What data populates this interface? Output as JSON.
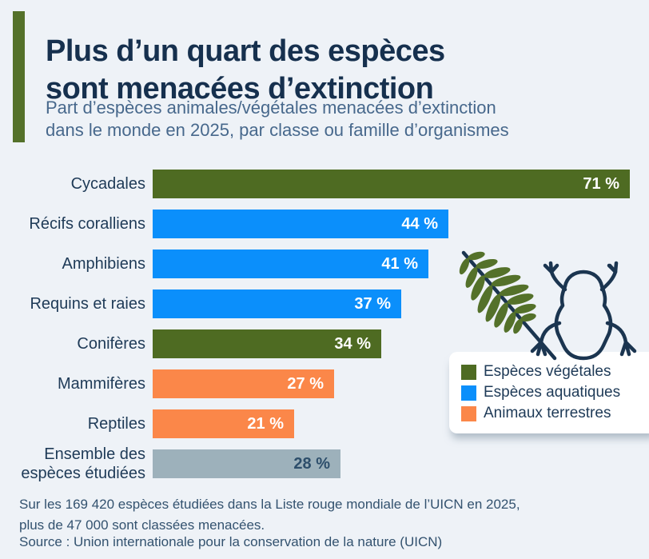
{
  "title": {
    "line1": "Plus d’un quart des espèces",
    "line2": "sont menacées d’extinction"
  },
  "subtitle": {
    "line1": "Part d’espèces animales/végétales menacées d’extinction",
    "line2": "dans le monde en 2025, par classe ou famille d’organismes"
  },
  "chart_data": {
    "type": "bar",
    "orientation": "horizontal",
    "unit": "%",
    "categories": [
      "Cycadales",
      "Récifs coralliens",
      "Amphibiens",
      "Requins et raies",
      "Conifères",
      "Mammifères",
      "Reptiles",
      "Ensemble des espèces étudiées"
    ],
    "values": [
      71,
      44,
      41,
      37,
      34,
      27,
      21,
      28
    ],
    "value_labels": [
      "71 %",
      "44 %",
      "41 %",
      "37 %",
      "34 %",
      "27 %",
      "21 %",
      "28 %"
    ],
    "groups": [
      "vegetales",
      "aquatiques",
      "aquatiques",
      "aquatiques",
      "vegetales",
      "terrestres",
      "terrestres",
      "ensemble"
    ],
    "colors": {
      "vegetales": "#4e6b22",
      "aquatiques": "#0b8ffb",
      "terrestres": "#fb8749",
      "ensemble": "#9db1bb",
      "ensemble_value_text": "#2d4e6b"
    },
    "xlim": [
      0,
      71
    ],
    "grid": false,
    "legend_position": "right-bottom"
  },
  "legend": {
    "items": [
      {
        "label": "Espèces végétales",
        "color": "#4e6b22"
      },
      {
        "label": "Espèces aquatiques",
        "color": "#0b8ffb"
      },
      {
        "label": "Animaux terrestres",
        "color": "#fb8749"
      }
    ]
  },
  "footer": {
    "note_line1": "Sur les 169 420 espèces étudiées dans la Liste rouge mondiale de l’UICN en 2025,",
    "note_line2": "plus de 47 000 sont classées menacées.",
    "source": "Source : Union internationale pour la conservation de la nature (UICN)"
  },
  "accent_color": "#54712a",
  "background_color": "#eef2f7"
}
